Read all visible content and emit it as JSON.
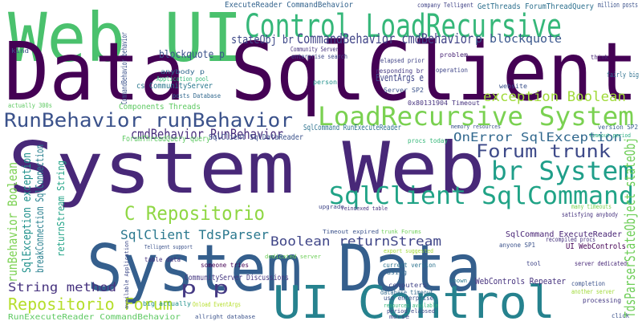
{
  "words": [
    "Web UI",
    "Control LoadRecursive",
    "Data SqlClient",
    "exception Boolean",
    "LoadRecursive System",
    "RunBehavior runBehavior",
    "cmdBehavior RunBehavior",
    "System Web",
    "Forum trunk",
    "br System",
    "OnError SqlException",
    "SqlClient SqlCommand",
    "C Repositorio",
    "SqlClient TdsParser",
    "Boolean returnStream",
    "System Data",
    "UI Control",
    "Repositorio Forum",
    "p p",
    "String method",
    "RunExecuteReader CommandBehavior",
    "TdsParserStateObject stateObj",
    "runBehavior Boolean",
    "SqlException exception",
    "breakConnection SqlConnection",
    "stateObj br",
    "CommandBehavior cmdBehavior",
    "p blockquote",
    "blockquote p",
    "ExecuteReader CommandBehavior",
    "GetThreads ForumThreadQuery",
    "million posts",
    "Components Threads",
    "CommunityServer Discussions",
    "WebControls Repeater",
    "UI WebControls",
    "SqlCommand ExecuteReader",
    "SqlCommand RunExecuteReader",
    "SqlClient SqlDataReader",
    "ForumThreadQuery query",
    "cs CommunityServer",
    "Application pool",
    "posts Database",
    "EventArgs e",
    "Server SP2",
    "elapsed prior",
    "0x80131904 Timeout",
    "memory resources",
    "version SP2",
    "timeout period",
    "procs today",
    "upgrade",
    "Telligent support",
    "dedicated server",
    "export suggested",
    "current version",
    "database timeout",
    "computers",
    "resources available",
    "period elapsed",
    "big actually",
    "Onload EventArgs",
    "allright database",
    "someone tries",
    "table data",
    "available Application",
    "returnStream String",
    "CommandBehavior behavior",
    "completion",
    "another server",
    "processing",
    "server dedicated",
    "many timeouts",
    "satisfying anybody",
    "enterprise search",
    "company Telligent",
    "operation",
    "problem",
    "website",
    "fairly big",
    "think",
    "anybody p",
    "Community Server",
    "actually 300s",
    "kind",
    "person",
    "responding br",
    "Timeout expired",
    "reindexed table",
    "trunk Forums",
    "using",
    "use enterprise",
    "morse",
    "click",
    "shown",
    "tool",
    "anyone SP1",
    "recompiled procs"
  ]
}
